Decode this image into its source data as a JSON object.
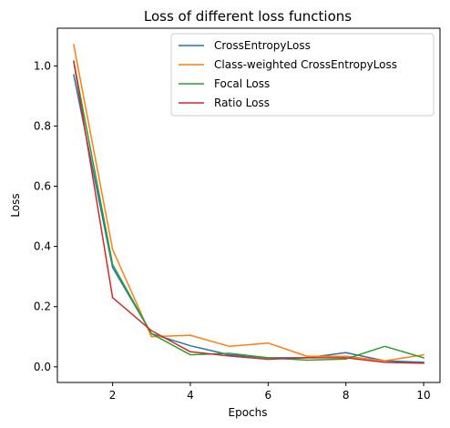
{
  "chart_data": {
    "type": "line",
    "title": "Loss of different loss functions",
    "xlabel": "Epochs",
    "ylabel": "Loss",
    "xlim": [
      0.58,
      10.42
    ],
    "ylim": [
      -0.052,
      1.125
    ],
    "xticks": [
      2,
      4,
      6,
      8,
      10
    ],
    "yticks": [
      0.0,
      0.2,
      0.4,
      0.6,
      0.8,
      1.0
    ],
    "ytick_labels": [
      "0.0",
      "0.2",
      "0.4",
      "0.6",
      "0.8",
      "1.0"
    ],
    "grid": false,
    "legend_position": "top-right",
    "x": [
      1,
      2,
      3,
      4,
      5,
      6,
      7,
      8,
      9,
      10
    ],
    "series": [
      {
        "name": "CrossEntropyLoss",
        "color": "#1f77b4",
        "values": [
          0.97,
          0.33,
          0.11,
          0.07,
          0.04,
          0.03,
          0.03,
          0.047,
          0.02,
          0.015
        ]
      },
      {
        "name": "Class-weighted CrossEntropyLoss",
        "color": "#ff7f0e",
        "values": [
          1.07,
          0.39,
          0.1,
          0.105,
          0.068,
          0.079,
          0.035,
          0.035,
          0.02,
          0.04
        ]
      },
      {
        "name": "Focal Loss",
        "color": "#2ca02c",
        "values": [
          1.015,
          0.34,
          0.11,
          0.04,
          0.045,
          0.03,
          0.022,
          0.026,
          0.068,
          0.03
        ]
      },
      {
        "name": "Ratio Loss",
        "color": "#d62728",
        "values": [
          1.015,
          0.23,
          0.12,
          0.05,
          0.036,
          0.025,
          0.03,
          0.03,
          0.015,
          0.012
        ]
      }
    ]
  }
}
